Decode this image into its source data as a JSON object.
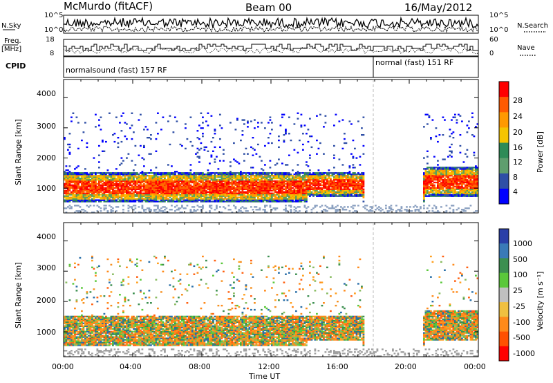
{
  "header": {
    "station": "McMurdo (fitACF)",
    "beam": "Beam 00",
    "date": "16/May/2012"
  },
  "top_panels": {
    "nsky_label": "N.Sky",
    "nsearch_label": "N.Search",
    "noise_ticks_left": [
      "10^5",
      "10^0"
    ],
    "noise_ticks_right": [
      "10^5",
      "10^0"
    ],
    "freq_label_1": "Freq.",
    "freq_label_2": "[MHz]",
    "freq_ticks": [
      "18",
      "8"
    ],
    "nave_label": "Nave",
    "nave_ticks": [
      "60",
      "0"
    ],
    "cpid_label": "CPID",
    "cpid_1": "normalsound (fast) 157 RF",
    "cpid_2": "normal (fast) 151 RF"
  },
  "chart_data": [
    {
      "type": "heatmap",
      "title": "",
      "xlabel": "Time UT",
      "ylabel": "Slant Range [km]",
      "colorbar_label": "Power [dB]",
      "colorbar_ticks": [
        "28",
        "24",
        "20",
        "16",
        "12",
        "8",
        "4"
      ],
      "colorbar_colors": [
        "#ff0000",
        "#ff5a00",
        "#ff9900",
        "#f5c400",
        "#2e8b57",
        "#5f9e6e",
        "#2f4fa6",
        "#0000ff"
      ],
      "xlim": [
        "00:00",
        "24:00"
      ],
      "ylim": [
        180,
        4600
      ],
      "yticks": [
        "4000",
        "3000",
        "2000",
        "1000"
      ],
      "xticks": [
        "00:00",
        "04:00",
        "08:00",
        "12:00",
        "16:00",
        "20:00",
        "00:00"
      ]
    },
    {
      "type": "heatmap",
      "title": "",
      "xlabel": "Time UT",
      "ylabel": "Slant Range [km]",
      "colorbar_label": "Velocity [m s⁻¹]",
      "colorbar_ticks": [
        "1000",
        "500",
        "100",
        "25",
        "-25",
        "-100",
        "-500",
        "-1000"
      ],
      "colorbar_colors": [
        "#2a3fa8",
        "#3a7ab8",
        "#3c8f50",
        "#5ac83a",
        "#c0c0c0",
        "#f0c040",
        "#ff8a1a",
        "#ff5000",
        "#ff0000"
      ],
      "xlim": [
        "00:00",
        "24:00"
      ],
      "ylim": [
        180,
        4600
      ],
      "yticks": [
        "4000",
        "3000",
        "2000",
        "1000"
      ],
      "xticks": [
        "00:00",
        "04:00",
        "08:00",
        "12:00",
        "16:00",
        "20:00",
        "00:00"
      ]
    }
  ],
  "x_axis_label": "Time UT"
}
